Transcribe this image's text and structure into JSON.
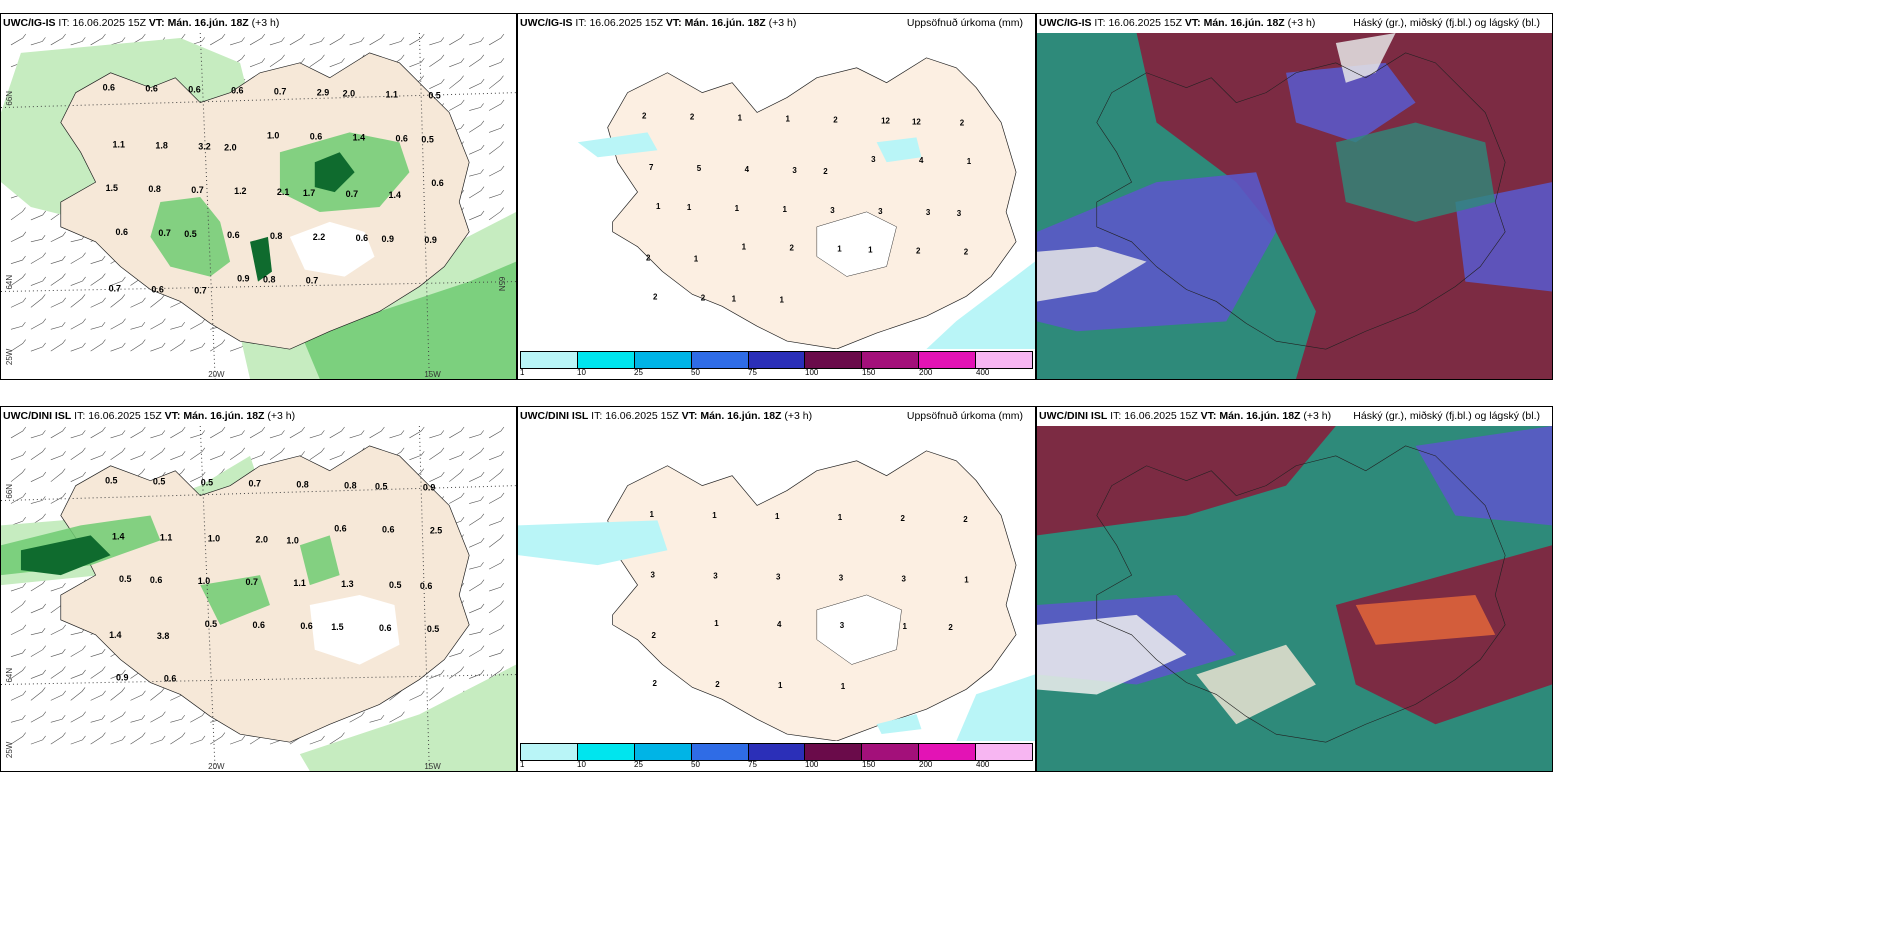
{
  "rows": [
    {
      "model": "UWC/IG-IS",
      "it_label": "IT:",
      "it_value": "16.06.2025 15Z",
      "vt_label": "VT:",
      "vt_value": "Mán. 16.jún. 18Z",
      "lead": "(+3 h)",
      "wind_panel": {
        "labels": [
          "0.6",
          "0.6",
          "0.6",
          "0.6",
          "0.7",
          "2.9",
          "2.0",
          "1.1",
          "0.5",
          "1.1",
          "1.8",
          "3.2",
          "2.0",
          "1.0",
          "0.6",
          "1.4",
          "0.6",
          "0.5",
          "1.5",
          "0.8",
          "0.7",
          "1.2",
          "2.1",
          "1.7",
          "0.7",
          "1.4",
          "0.6",
          "0.6",
          "0.7",
          "0.5",
          "0.6",
          "0.8",
          "2.2",
          "0.6",
          "0.9",
          "0.9",
          "0.7",
          "0.6",
          "0.7",
          "0.9",
          "0.8",
          "0.7"
        ],
        "lat_labels": [
          "66N",
          "64N",
          "65N"
        ],
        "lon_labels": [
          "25W",
          "20W",
          "15W"
        ]
      },
      "precip_panel": {
        "field_title": "Uppsöfnuð úrkoma (mm)",
        "labels": [
          "2",
          "2",
          "1",
          "1",
          "2",
          "12",
          "12",
          "2",
          "7",
          "5",
          "4",
          "3",
          "2",
          "3",
          "4",
          "1",
          "1",
          "1",
          "1",
          "1",
          "3",
          "3",
          "3",
          "3",
          "2",
          "1",
          "1",
          "2",
          "1",
          "1",
          "2",
          "2",
          "2",
          "2",
          "1",
          "1"
        ]
      },
      "cloud_panel": {
        "field_title": "Háský (gr.), miðský (fj.bl.) og lágský (bl.)"
      }
    },
    {
      "model": "UWC/DINI ISL",
      "it_label": "IT:",
      "it_value": "16.06.2025 15Z",
      "vt_label": "VT:",
      "vt_value": "Mán. 16.jún. 18Z",
      "lead": "(+3 h)",
      "wind_panel": {
        "labels": [
          "0.5",
          "0.5",
          "0.5",
          "0.7",
          "0.8",
          "0.8",
          "0.5",
          "0.9",
          "1.4",
          "1.1",
          "1.0",
          "2.0",
          "1.0",
          "0.6",
          "0.6",
          "2.5",
          "0.5",
          "0.6",
          "1.0",
          "0.7",
          "1.1",
          "1.3",
          "0.5",
          "0.6",
          "1.4",
          "3.8",
          "0.5",
          "0.6",
          "0.6",
          "1.5",
          "0.6",
          "0.5",
          "0.9",
          "0.6"
        ],
        "lat_labels": [
          "66N",
          "64N"
        ],
        "lon_labels": [
          "25W",
          "20W",
          "15W"
        ]
      },
      "precip_panel": {
        "field_title": "Uppsöfnuð úrkoma (mm)",
        "labels": [
          "1",
          "1",
          "1",
          "1",
          "2",
          "2",
          "3",
          "3",
          "3",
          "3",
          "3",
          "1",
          "2",
          "1",
          "4",
          "3",
          "1",
          "2",
          "2",
          "2",
          "1",
          "1"
        ]
      },
      "cloud_panel": {
        "field_title": "Háský (gr.), miðský (fj.bl.) og lágský (bl.)"
      }
    }
  ],
  "legend": {
    "labels": [
      "1",
      "10",
      "25",
      "50",
      "75",
      "100",
      "150",
      "200",
      "400"
    ],
    "colors": [
      "#b9f5f7",
      "#00e5ee",
      "#00b4e6",
      "#2f6ce6",
      "#2b2fb8",
      "#6a0b4a",
      "#a3107a",
      "#e313b5",
      "#f7b6f2"
    ]
  },
  "colors": {
    "land": "#f6e8d8",
    "land_precip": "#fcefe2",
    "green_light": "#c6ecc0",
    "green_mid": "#6ecb72",
    "green_dark": "#0f6b2e",
    "cyan_light": "#b9f5f7",
    "cloud_high": "#2e8a7a",
    "cloud_mid": "#5b58c8",
    "cloud_low": "#8a1a3a"
  }
}
